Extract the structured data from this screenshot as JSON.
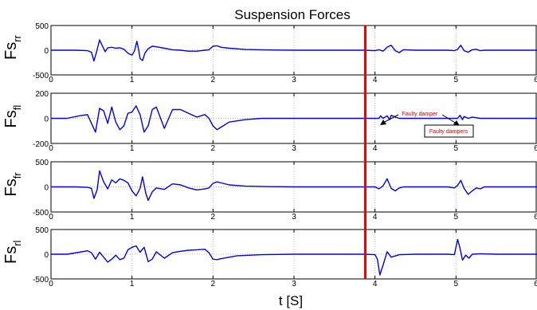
{
  "chart_data": [
    {
      "type": "line",
      "title": "Suspension Forces",
      "ylabel_main": "Fs",
      "ylabel_sub": "rr",
      "xlim": [
        0,
        6
      ],
      "ylim": [
        -500,
        500
      ],
      "xticks": [
        "0",
        "1",
        "2",
        "3",
        "4",
        "5",
        "6"
      ],
      "yticks": [
        "-500",
        "0",
        "500"
      ],
      "grid": true,
      "x": [
        0,
        0.3,
        0.45,
        0.5,
        0.53,
        0.56,
        0.6,
        0.63,
        0.67,
        0.7,
        0.75,
        0.8,
        0.85,
        0.9,
        0.95,
        1.0,
        1.03,
        1.06,
        1.08,
        1.1,
        1.13,
        1.16,
        1.2,
        1.25,
        1.3,
        1.4,
        1.5,
        1.6,
        1.7,
        1.8,
        1.9,
        1.95,
        2.0,
        2.05,
        2.1,
        2.2,
        2.4,
        2.7,
        3.0,
        3.5,
        3.85,
        4.0,
        4.05,
        4.1,
        4.15,
        4.2,
        4.25,
        4.3,
        4.35,
        4.5,
        4.9,
        4.98,
        5.02,
        5.06,
        5.1,
        5.15,
        5.2,
        5.25,
        5.3,
        5.35,
        6.0
      ],
      "values": [
        0,
        0,
        -10,
        -40,
        -220,
        -50,
        210,
        100,
        -30,
        50,
        60,
        40,
        50,
        20,
        -60,
        -100,
        -20,
        180,
        30,
        -170,
        -210,
        -60,
        30,
        80,
        70,
        40,
        10,
        0,
        -20,
        -20,
        0,
        10,
        80,
        90,
        60,
        40,
        15,
        5,
        0,
        0,
        0,
        -10,
        10,
        -20,
        60,
        100,
        -10,
        -50,
        10,
        0,
        0,
        -10,
        20,
        100,
        -10,
        -40,
        10,
        20,
        -10,
        0,
        0
      ]
    },
    {
      "type": "line",
      "ylabel_main": "Fs",
      "ylabel_sub": "fl",
      "xlim": [
        0,
        6
      ],
      "ylim": [
        -200,
        200
      ],
      "xticks": [
        "0",
        "1",
        "2",
        "3",
        "4",
        "5",
        "6"
      ],
      "yticks": [
        "-200",
        "0",
        "200"
      ],
      "grid": true,
      "x": [
        0,
        0.2,
        0.35,
        0.45,
        0.5,
        0.55,
        0.6,
        0.65,
        0.7,
        0.75,
        0.8,
        0.85,
        0.9,
        0.95,
        1.0,
        1.05,
        1.1,
        1.15,
        1.2,
        1.25,
        1.3,
        1.4,
        1.5,
        1.6,
        1.7,
        1.8,
        1.9,
        1.95,
        2.0,
        2.05,
        2.1,
        2.2,
        2.4,
        2.6,
        3.0,
        3.5,
        3.85,
        4.05,
        4.07,
        4.1,
        4.15,
        4.18,
        4.2,
        4.25,
        4.3,
        4.5,
        4.9,
        5.02,
        5.05,
        5.08,
        5.1,
        5.15,
        5.2,
        5.3,
        5.5,
        6.0
      ],
      "values": [
        0,
        0,
        20,
        30,
        -40,
        -110,
        80,
        60,
        -40,
        90,
        -30,
        -90,
        -60,
        40,
        50,
        100,
        30,
        -110,
        -60,
        70,
        90,
        -80,
        70,
        70,
        40,
        10,
        30,
        0,
        -60,
        -90,
        -70,
        -30,
        -10,
        0,
        0,
        0,
        0,
        0,
        20,
        0,
        20,
        -10,
        25,
        10,
        0,
        0,
        0,
        0,
        25,
        -10,
        15,
        0,
        10,
        0,
        0,
        0
      ]
    },
    {
      "type": "line",
      "ylabel_main": "Fs",
      "ylabel_sub": "fr",
      "xlim": [
        0,
        6
      ],
      "ylim": [
        -500,
        500
      ],
      "xticks": [
        "0",
        "1",
        "2",
        "3",
        "4",
        "5",
        "6"
      ],
      "yticks": [
        "-500",
        "0",
        "500"
      ],
      "grid": true,
      "x": [
        0,
        0.3,
        0.45,
        0.5,
        0.53,
        0.57,
        0.6,
        0.65,
        0.7,
        0.75,
        0.8,
        0.85,
        0.9,
        0.95,
        1.0,
        1.05,
        1.1,
        1.13,
        1.17,
        1.2,
        1.25,
        1.3,
        1.4,
        1.5,
        1.6,
        1.7,
        1.8,
        1.9,
        1.95,
        2.0,
        2.05,
        2.1,
        2.2,
        2.4,
        2.7,
        3.0,
        3.5,
        3.85,
        4.0,
        4.05,
        4.1,
        4.15,
        4.2,
        4.25,
        4.3,
        4.35,
        4.5,
        4.9,
        4.98,
        5.02,
        5.06,
        5.1,
        5.15,
        5.2,
        5.25,
        5.3,
        5.35,
        6.0
      ],
      "values": [
        0,
        0,
        -10,
        -30,
        -230,
        -60,
        320,
        100,
        -40,
        140,
        80,
        160,
        130,
        80,
        -80,
        -180,
        -30,
        200,
        -120,
        -270,
        -100,
        -20,
        -50,
        60,
        40,
        -20,
        -60,
        -40,
        -20,
        70,
        100,
        80,
        40,
        15,
        5,
        0,
        0,
        0,
        0,
        -40,
        20,
        160,
        -30,
        -80,
        -20,
        0,
        0,
        0,
        -20,
        30,
        130,
        -30,
        -150,
        -80,
        -20,
        -40,
        0,
        0
      ]
    },
    {
      "type": "line",
      "ylabel_main": "Fs",
      "ylabel_sub": "rl",
      "xlim": [
        0,
        6
      ],
      "ylim": [
        -500,
        500
      ],
      "xticks": [
        "0",
        "1",
        "2",
        "3",
        "4",
        "5",
        "6"
      ],
      "yticks": [
        "-500",
        "0",
        "500"
      ],
      "xlabel": "t [S]",
      "grid": true,
      "x": [
        0,
        0.2,
        0.35,
        0.45,
        0.5,
        0.55,
        0.6,
        0.65,
        0.7,
        0.75,
        0.8,
        0.85,
        0.9,
        0.95,
        1.0,
        1.05,
        1.1,
        1.15,
        1.2,
        1.25,
        1.3,
        1.4,
        1.5,
        1.6,
        1.7,
        1.8,
        1.9,
        1.95,
        2.0,
        2.05,
        2.1,
        2.3,
        2.6,
        3.0,
        3.5,
        3.85,
        4.0,
        4.03,
        4.06,
        4.1,
        4.15,
        4.2,
        4.3,
        4.5,
        4.9,
        4.98,
        5.02,
        5.05,
        5.08,
        5.12,
        5.16,
        5.2,
        5.3,
        5.5,
        6.0
      ],
      "values": [
        0,
        0,
        40,
        70,
        30,
        -100,
        40,
        -60,
        -160,
        -100,
        -20,
        -110,
        -80,
        90,
        140,
        170,
        40,
        140,
        -150,
        -100,
        50,
        -80,
        30,
        60,
        80,
        90,
        100,
        30,
        -100,
        -110,
        -90,
        -30,
        -10,
        0,
        0,
        0,
        -10,
        -100,
        -420,
        -220,
        50,
        -60,
        -10,
        0,
        0,
        -10,
        300,
        120,
        -120,
        -20,
        -80,
        0,
        10,
        0,
        0
      ]
    }
  ],
  "figure": {
    "title": "Suspension Forces",
    "xlabel": "t [S]",
    "vertical_line_x": 3.88,
    "colors": {
      "series": "#0000ee",
      "marker_line": "#ee0000",
      "annotation": "#e00000",
      "grid": "#bdbdbd",
      "axes": "#000000"
    }
  },
  "annotations": {
    "arrow_label": "Faulty damper",
    "box_label": "Faulty dampers"
  }
}
